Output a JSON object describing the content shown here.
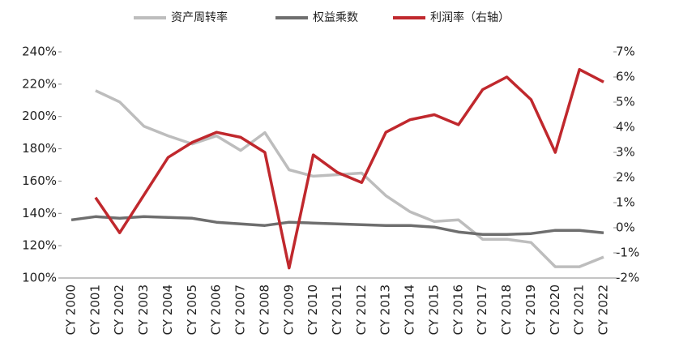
{
  "chart_data": {
    "type": "line",
    "categories": [
      "CY 2000",
      "CY 2001",
      "CY 2002",
      "CY 2003",
      "CY 2004",
      "CY 2005",
      "CY 2006",
      "CY 2007",
      "CY 2008",
      "CY 2009",
      "CY 2010",
      "CY 2011",
      "CY 2012",
      "CY 2013",
      "CY 2014",
      "CY 2015",
      "CY 2016",
      "CY 2017",
      "CY 2018",
      "CY 2019",
      "CY 2020",
      "CY 2021",
      "CY 2022"
    ],
    "series": [
      {
        "name": "资产周转率",
        "color": "#bdbdbd",
        "values": [
          null,
          216,
          209,
          194,
          188,
          183,
          188,
          179,
          190,
          167,
          163,
          164,
          165,
          151,
          141,
          135,
          136,
          124,
          124,
          122,
          107,
          107,
          113
        ]
      },
      {
        "name": "权益乘数",
        "color": "#6e6e6e",
        "values": [
          136,
          138,
          137,
          138,
          137.5,
          137,
          134.5,
          133.5,
          132.5,
          134.5,
          134,
          133.5,
          133,
          132.5,
          132.5,
          131.5,
          128.5,
          127,
          127,
          127.5,
          129.5,
          129.5,
          128
        ]
      },
      {
        "name": "利润率（右轴）",
        "color": "#c0282d",
        "axis": "y2",
        "values": [
          null,
          1.2,
          -0.2,
          1.3,
          2.8,
          3.4,
          3.8,
          3.6,
          3.0,
          -1.6,
          2.9,
          2.2,
          1.8,
          3.8,
          4.3,
          4.5,
          4.1,
          5.5,
          6.0,
          5.1,
          3.0,
          6.3,
          5.8
        ]
      }
    ],
    "ylim": [
      100,
      240
    ],
    "yticks": [
      {
        "value": 100,
        "label": "100%"
      },
      {
        "value": 120,
        "label": "120%"
      },
      {
        "value": 140,
        "label": "140%"
      },
      {
        "value": 160,
        "label": "160%"
      },
      {
        "value": 180,
        "label": "180%"
      },
      {
        "value": 200,
        "label": "200%"
      },
      {
        "value": 220,
        "label": "220%"
      },
      {
        "value": 240,
        "label": "240%"
      }
    ],
    "y2lim": [
      -2,
      7
    ],
    "y2ticks": [
      {
        "value": -2,
        "label": "-2%"
      },
      {
        "value": -1,
        "label": "-1%"
      },
      {
        "value": 0,
        "label": "0%"
      },
      {
        "value": 1,
        "label": "1%"
      },
      {
        "value": 2,
        "label": "2%"
      },
      {
        "value": 3,
        "label": "3%"
      },
      {
        "value": 4,
        "label": "4%"
      },
      {
        "value": 5,
        "label": "5%"
      },
      {
        "value": 6,
        "label": "6%"
      },
      {
        "value": 7,
        "label": "7%"
      }
    ],
    "legend": "top"
  }
}
